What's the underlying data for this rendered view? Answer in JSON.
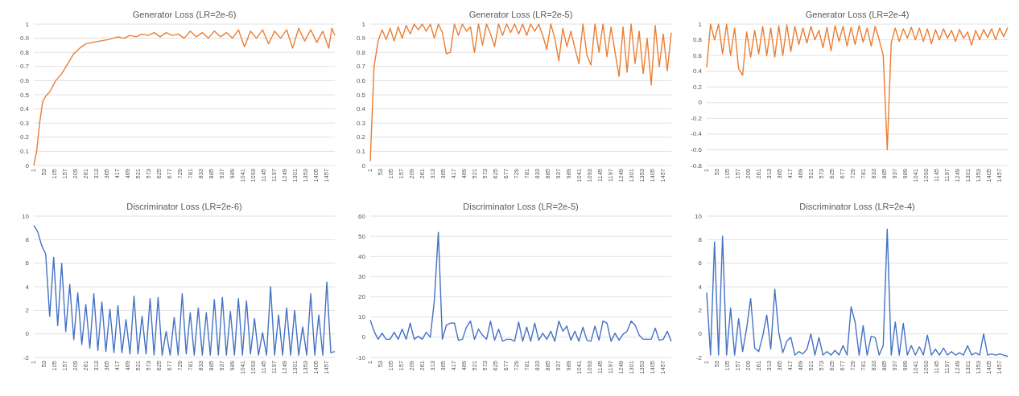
{
  "chart_data": [
    {
      "type": "line",
      "title": "Generator Loss (LR=2e-6)",
      "grid": "y",
      "xlim": [
        1,
        1500
      ],
      "xticks": [
        1,
        53,
        105,
        157,
        209,
        261,
        313,
        365,
        417,
        469,
        521,
        573,
        625,
        677,
        729,
        781,
        833,
        885,
        937,
        989,
        1041,
        1093,
        1145,
        1197,
        1249,
        1301,
        1353,
        1405,
        1457
      ],
      "ylim": [
        0,
        1
      ],
      "yticks": [
        0,
        0.1,
        0.2,
        0.3,
        0.4,
        0.5,
        0.6,
        0.7,
        0.8,
        0.9,
        1
      ],
      "series": [
        {
          "color": "#ed7d31",
          "x": [
            1,
            15,
            30,
            45,
            60,
            80,
            110,
            140,
            170,
            200,
            230,
            260,
            290,
            330,
            370,
            420,
            450,
            480,
            510,
            540,
            570,
            600,
            630,
            660,
            690,
            720,
            750,
            780,
            810,
            840,
            870,
            900,
            930,
            960,
            990,
            1020,
            1050,
            1080,
            1110,
            1140,
            1170,
            1200,
            1230,
            1260,
            1290,
            1320,
            1350,
            1380,
            1410,
            1440,
            1470,
            1485,
            1500
          ],
          "values": [
            0,
            0.1,
            0.3,
            0.45,
            0.49,
            0.52,
            0.6,
            0.65,
            0.72,
            0.79,
            0.83,
            0.86,
            0.87,
            0.88,
            0.89,
            0.91,
            0.9,
            0.92,
            0.91,
            0.93,
            0.92,
            0.94,
            0.91,
            0.94,
            0.92,
            0.93,
            0.9,
            0.95,
            0.91,
            0.94,
            0.9,
            0.95,
            0.91,
            0.94,
            0.9,
            0.96,
            0.84,
            0.95,
            0.9,
            0.96,
            0.86,
            0.95,
            0.9,
            0.96,
            0.83,
            0.97,
            0.88,
            0.96,
            0.87,
            0.95,
            0.83,
            0.97,
            0.92
          ]
        }
      ]
    },
    {
      "type": "line",
      "title": "Generator Loss (LR=2e-5)",
      "grid": "y",
      "xlim": [
        1,
        1500
      ],
      "xticks": [
        1,
        53,
        105,
        157,
        209,
        261,
        313,
        365,
        417,
        469,
        521,
        573,
        625,
        677,
        729,
        781,
        833,
        885,
        937,
        989,
        1041,
        1093,
        1145,
        1197,
        1249,
        1301,
        1353,
        1405,
        1457
      ],
      "ylim": [
        0,
        1
      ],
      "yticks": [
        0,
        0.1,
        0.2,
        0.3,
        0.4,
        0.5,
        0.6,
        0.7,
        0.8,
        0.9,
        1
      ],
      "series": [
        {
          "color": "#ed7d31",
          "x": [
            1,
            20,
            40,
            60,
            80,
            100,
            120,
            140,
            160,
            180,
            200,
            220,
            240,
            260,
            280,
            300,
            320,
            340,
            360,
            380,
            400,
            420,
            440,
            460,
            480,
            500,
            520,
            540,
            560,
            580,
            600,
            620,
            640,
            660,
            680,
            700,
            720,
            740,
            760,
            780,
            800,
            820,
            840,
            860,
            880,
            900,
            920,
            940,
            960,
            980,
            1000,
            1020,
            1040,
            1060,
            1080,
            1100,
            1120,
            1140,
            1160,
            1180,
            1200,
            1220,
            1240,
            1260,
            1280,
            1300,
            1320,
            1340,
            1360,
            1380,
            1400,
            1420,
            1440,
            1460,
            1480,
            1500
          ],
          "values": [
            0.03,
            0.7,
            0.88,
            0.96,
            0.89,
            0.97,
            0.88,
            0.98,
            0.9,
            0.99,
            0.93,
            1,
            0.96,
            1,
            0.95,
            1,
            0.9,
            1,
            0.94,
            0.79,
            0.8,
            1,
            0.92,
            1,
            0.95,
            0.98,
            0.8,
            1,
            0.85,
            1,
            0.93,
            0.84,
            1,
            0.92,
            1,
            0.94,
            1,
            0.93,
            1,
            0.92,
            1,
            0.95,
            1,
            0.92,
            0.82,
            1,
            0.9,
            0.74,
            0.97,
            0.84,
            0.95,
            0.83,
            0.72,
            1,
            0.78,
            0.71,
            1,
            0.8,
            1,
            0.77,
            0.98,
            0.8,
            0.63,
            0.98,
            0.66,
            1,
            0.72,
            0.95,
            0.65,
            0.9,
            0.57,
            0.99,
            0.7,
            0.93,
            0.67,
            0.94
          ]
        }
      ]
    },
    {
      "type": "line",
      "title": "Generator Loss (LR=2e-4)",
      "grid": "y",
      "xlim": [
        1,
        1500
      ],
      "xticks": [
        1,
        53,
        105,
        157,
        209,
        261,
        313,
        365,
        417,
        469,
        521,
        573,
        625,
        677,
        729,
        781,
        833,
        885,
        937,
        989,
        1041,
        1093,
        1145,
        1197,
        1249,
        1301,
        1353,
        1405,
        1457
      ],
      "ylim": [
        -0.8,
        1
      ],
      "yticks": [
        -0.8,
        -0.6,
        -0.4,
        -0.2,
        0,
        0.2,
        0.4,
        0.6,
        0.8,
        1
      ],
      "series": [
        {
          "color": "#ed7d31",
          "x": [
            1,
            20,
            40,
            60,
            80,
            100,
            120,
            140,
            160,
            180,
            200,
            220,
            240,
            260,
            280,
            300,
            320,
            340,
            360,
            380,
            400,
            420,
            440,
            460,
            480,
            500,
            520,
            540,
            560,
            580,
            600,
            620,
            640,
            660,
            680,
            700,
            720,
            740,
            760,
            780,
            800,
            820,
            840,
            860,
            880,
            900,
            920,
            940,
            960,
            980,
            1000,
            1020,
            1040,
            1060,
            1080,
            1100,
            1120,
            1140,
            1160,
            1180,
            1200,
            1220,
            1240,
            1260,
            1280,
            1300,
            1320,
            1340,
            1360,
            1380,
            1400,
            1420,
            1440,
            1460,
            1480,
            1500
          ],
          "values": [
            0.45,
            1,
            0.8,
            1,
            0.62,
            1,
            0.6,
            0.95,
            0.43,
            0.35,
            0.9,
            0.58,
            0.92,
            0.62,
            0.97,
            0.6,
            0.95,
            0.58,
            0.98,
            0.6,
            0.99,
            0.65,
            0.97,
            0.74,
            0.95,
            0.76,
            0.97,
            0.8,
            0.92,
            0.7,
            0.96,
            0.66,
            0.98,
            0.78,
            0.97,
            0.72,
            0.96,
            0.74,
            0.98,
            0.77,
            0.95,
            0.72,
            0.97,
            0.8,
            0.6,
            -0.6,
            0.76,
            0.95,
            0.78,
            0.94,
            0.82,
            0.96,
            0.8,
            0.95,
            0.78,
            0.94,
            0.75,
            0.93,
            0.8,
            0.94,
            0.82,
            0.92,
            0.78,
            0.93,
            0.82,
            0.9,
            0.73,
            0.92,
            0.8,
            0.93,
            0.83,
            0.94,
            0.8,
            0.95,
            0.84,
            0.96
          ]
        }
      ]
    },
    {
      "type": "line",
      "title": "Discriminator Loss (LR=2e-6)",
      "grid": "y",
      "xlim": [
        1,
        1500
      ],
      "xticks": [
        1,
        53,
        105,
        157,
        209,
        261,
        313,
        365,
        417,
        469,
        521,
        573,
        625,
        677,
        729,
        781,
        833,
        885,
        937,
        989,
        1041,
        1093,
        1145,
        1197,
        1249,
        1301,
        1353,
        1405,
        1457
      ],
      "ylim": [
        -2,
        10
      ],
      "yticks": [
        -2,
        0,
        2,
        4,
        6,
        8,
        10
      ],
      "series": [
        {
          "color": "#4472c4",
          "x": [
            1,
            20,
            40,
            60,
            80,
            100,
            120,
            140,
            160,
            180,
            200,
            220,
            240,
            260,
            280,
            300,
            320,
            340,
            360,
            380,
            400,
            420,
            440,
            460,
            480,
            500,
            520,
            540,
            560,
            580,
            600,
            620,
            640,
            660,
            680,
            700,
            720,
            740,
            760,
            780,
            800,
            820,
            840,
            860,
            880,
            900,
            920,
            940,
            960,
            980,
            1000,
            1020,
            1040,
            1060,
            1080,
            1100,
            1120,
            1140,
            1160,
            1180,
            1200,
            1220,
            1240,
            1260,
            1280,
            1300,
            1320,
            1340,
            1360,
            1380,
            1400,
            1420,
            1440,
            1460,
            1480,
            1500
          ],
          "values": [
            9.2,
            8.7,
            7.5,
            6.8,
            1.5,
            6.5,
            0.7,
            6,
            0.2,
            4.2,
            -0.5,
            3.5,
            -0.9,
            2.5,
            -1.2,
            3.4,
            -1.4,
            2.7,
            -1.5,
            2.1,
            -1.6,
            2.4,
            -1.6,
            1.2,
            -1.7,
            3.2,
            -1.7,
            1.5,
            -1.7,
            3,
            -1.8,
            3.1,
            -1.8,
            0.2,
            -1.8,
            1.4,
            -1.8,
            3.4,
            -1.7,
            1.8,
            -1.8,
            2.2,
            -1.8,
            1.8,
            -1.8,
            2.9,
            -1.8,
            3.1,
            -1.8,
            1.9,
            -1.8,
            3,
            -1.8,
            2.8,
            -1.7,
            1.3,
            -1.8,
            0.1,
            -1.8,
            4,
            -1.8,
            1.6,
            -1.8,
            2.2,
            -1.8,
            2,
            -1.8,
            0.6,
            -1.8,
            3.4,
            -1.8,
            1.6,
            -1.8,
            4.4,
            -1.6,
            -1.5
          ]
        }
      ]
    },
    {
      "type": "line",
      "title": "Discriminator Loss (LR=2e-5)",
      "grid": "y",
      "xlim": [
        1,
        1500
      ],
      "xticks": [
        1,
        53,
        105,
        157,
        209,
        261,
        313,
        365,
        417,
        469,
        521,
        573,
        625,
        677,
        729,
        781,
        833,
        885,
        937,
        989,
        1041,
        1093,
        1145,
        1197,
        1249,
        1301,
        1353,
        1405,
        1457
      ],
      "ylim": [
        -10,
        60
      ],
      "yticks": [
        -10,
        0,
        10,
        20,
        30,
        40,
        50,
        60
      ],
      "series": [
        {
          "color": "#4472c4",
          "x": [
            1,
            20,
            40,
            60,
            80,
            100,
            120,
            140,
            160,
            180,
            200,
            220,
            240,
            260,
            280,
            300,
            320,
            340,
            360,
            380,
            400,
            420,
            440,
            460,
            480,
            500,
            520,
            540,
            560,
            580,
            600,
            620,
            640,
            660,
            680,
            700,
            720,
            740,
            760,
            780,
            800,
            820,
            840,
            860,
            880,
            900,
            920,
            940,
            960,
            980,
            1000,
            1020,
            1040,
            1060,
            1080,
            1100,
            1120,
            1140,
            1160,
            1180,
            1200,
            1220,
            1240,
            1260,
            1280,
            1300,
            1320,
            1340,
            1360,
            1380,
            1400,
            1420,
            1440,
            1460,
            1480,
            1500
          ],
          "values": [
            8.5,
            3,
            -1,
            2,
            -1,
            -1,
            2.5,
            -1,
            4,
            -1,
            7,
            -1,
            0.5,
            -1,
            2.5,
            0,
            18,
            52,
            -1,
            6,
            7,
            7,
            -1.5,
            -1,
            5,
            8,
            -1,
            4,
            1,
            -1,
            8,
            -1.5,
            4,
            -2,
            -1,
            -1,
            -2,
            7.5,
            -2,
            5,
            -2,
            7,
            -1.5,
            2,
            -1,
            3,
            -2,
            8,
            3,
            5.5,
            -1.5,
            3,
            -2,
            5,
            -1.5,
            -2,
            5.5,
            -1.5,
            8,
            7,
            -2,
            2,
            -1.5,
            1.5,
            3,
            8,
            6,
            1,
            -1,
            -1,
            -1,
            4.5,
            -1.5,
            -1,
            3,
            -2
          ]
        }
      ]
    },
    {
      "type": "line",
      "title": "Discriminator Loss (LR=2e-4)",
      "grid": "y",
      "xlim": [
        1,
        1500
      ],
      "xticks": [
        1,
        53,
        105,
        157,
        209,
        261,
        313,
        365,
        417,
        469,
        521,
        573,
        625,
        677,
        729,
        781,
        833,
        885,
        937,
        989,
        1041,
        1093,
        1145,
        1197,
        1249,
        1301,
        1353,
        1405,
        1457
      ],
      "ylim": [
        -2,
        10
      ],
      "yticks": [
        -2,
        0,
        2,
        4,
        6,
        8,
        10
      ],
      "series": [
        {
          "color": "#4472c4",
          "x": [
            1,
            20,
            40,
            60,
            80,
            100,
            120,
            140,
            160,
            180,
            200,
            220,
            240,
            260,
            280,
            300,
            320,
            340,
            360,
            380,
            400,
            420,
            440,
            460,
            480,
            500,
            520,
            540,
            560,
            580,
            600,
            620,
            640,
            660,
            680,
            700,
            720,
            740,
            760,
            780,
            800,
            820,
            840,
            860,
            880,
            900,
            920,
            940,
            960,
            980,
            1000,
            1020,
            1040,
            1060,
            1080,
            1100,
            1120,
            1140,
            1160,
            1180,
            1200,
            1220,
            1240,
            1260,
            1280,
            1300,
            1320,
            1340,
            1360,
            1380,
            1400,
            1420,
            1440,
            1460,
            1480,
            1500
          ],
          "values": [
            3.5,
            -1.8,
            7.8,
            -1.8,
            8.3,
            -1.8,
            2.2,
            -1.8,
            1.3,
            -1.5,
            0.5,
            3,
            -1.2,
            -1.5,
            -0.2,
            1.6,
            -1.3,
            3.8,
            0.1,
            -1.6,
            -0.6,
            -0.3,
            -1.8,
            -1.5,
            -1.7,
            -1.3,
            0,
            -1.8,
            -0.3,
            -1.8,
            -1.5,
            -1.8,
            -1.4,
            -1.8,
            -1,
            -1.8,
            2.3,
            1,
            -1.8,
            0.7,
            -1.8,
            -0.2,
            -0.3,
            -1.8,
            -1,
            8.9,
            -1.8,
            1,
            -1.8,
            0.9,
            -1.8,
            -1,
            -1.8,
            -1.1,
            -1.8,
            -0.1,
            -1.8,
            -1.3,
            -1.8,
            -1.2,
            -1.8,
            -1.5,
            -1.8,
            -1.6,
            -1.8,
            -1,
            -1.8,
            -1.6,
            -1.8,
            0,
            -1.8,
            -1.7,
            -1.8,
            -1.7,
            -1.8,
            -1.9
          ]
        }
      ]
    }
  ]
}
